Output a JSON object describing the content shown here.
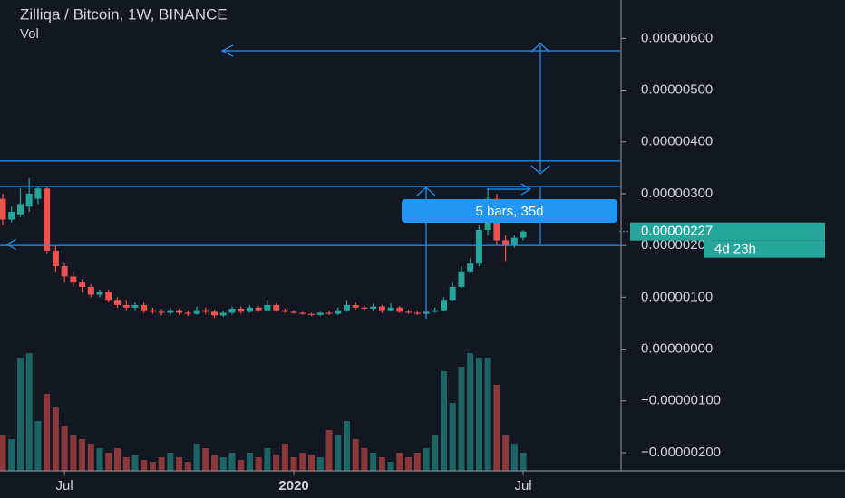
{
  "chart_data": {
    "type": "candlestick",
    "title": "Zilliqa / Bitcoin, 1W, BINANCE",
    "volume_label": "Vol",
    "categories": [
      null,
      null,
      null,
      null,
      null,
      null,
      null,
      "Jul",
      null,
      null,
      null,
      null,
      null,
      null,
      null,
      null,
      null,
      null,
      null,
      null,
      null,
      null,
      null,
      null,
      null,
      null,
      null,
      null,
      null,
      null,
      null,
      null,
      null,
      "2020",
      null,
      null,
      null,
      null,
      null,
      null,
      null,
      null,
      null,
      null,
      null,
      null,
      null,
      null,
      null,
      null,
      null,
      null,
      null,
      null,
      null,
      null,
      null,
      null,
      null,
      "Jul"
    ],
    "open": [
      2.9e-06,
      2.5e-06,
      2.6e-06,
      2.75e-06,
      2.9e-06,
      3.1e-06,
      1.9e-06,
      1.6e-06,
      1.4e-06,
      1.3e-06,
      1.2e-06,
      1.05e-06,
      1.1e-06,
      9.5e-07,
      8.5e-07,
      8e-07,
      8.5e-07,
      7.5e-07,
      7.2e-07,
      7e-07,
      7.5e-07,
      7e-07,
      6.8e-07,
      7.5e-07,
      7.2e-07,
      6.5e-07,
      7e-07,
      7.8e-07,
      7.2e-07,
      8e-07,
      7.5e-07,
      8.5e-07,
      7.5e-07,
      7.2e-07,
      7e-07,
      6.8e-07,
      6.6e-07,
      7e-07,
      6.8e-07,
      7.5e-07,
      8.5e-07,
      8e-07,
      7.8e-07,
      8.2e-07,
      7.5e-07,
      8e-07,
      7.2e-07,
      7e-07,
      6.8e-07,
      7.2e-07,
      7.5e-07,
      9.5e-07,
      1.2e-06,
      1.5e-06,
      1.65e-06,
      2.3e-06,
      2.9e-06,
      2.1e-06,
      2e-06,
      2.15e-06
    ],
    "high": [
      3e-06,
      2.75e-06,
      3.1e-06,
      3.3e-06,
      3.15e-06,
      3.15e-06,
      2e-06,
      1.65e-06,
      1.5e-06,
      1.35e-06,
      1.25e-06,
      1.15e-06,
      1.15e-06,
      1e-06,
      9.5e-07,
      9e-07,
      9e-07,
      8e-07,
      7.8e-07,
      8e-07,
      7.8e-07,
      7.5e-07,
      8.2e-07,
      8e-07,
      7.6e-07,
      7.4e-07,
      8.2e-07,
      8.2e-07,
      8.5e-07,
      8.3e-07,
      9.5e-07,
      8.8e-07,
      7.8e-07,
      7.5e-07,
      7.2e-07,
      7e-07,
      7.2e-07,
      7.4e-07,
      8e-07,
      9.5e-07,
      9e-07,
      8.4e-07,
      8.8e-07,
      8.5e-07,
      8.8e-07,
      8.3e-07,
      7.6e-07,
      7.4e-07,
      7.6e-07,
      8e-07,
      1e-06,
      1.3e-06,
      1.6e-06,
      1.75e-06,
      2.4e-06,
      3.1e-06,
      3e-06,
      2.2e-06,
      2.2e-06,
      2.3e-06
    ],
    "low": [
      2.4e-06,
      2.45e-06,
      2.55e-06,
      2.65e-06,
      2.8e-06,
      1.85e-06,
      1.5e-06,
      1.3e-06,
      1.2e-06,
      1.1e-06,
      1e-06,
      1e-06,
      9e-07,
      8e-07,
      7.5e-07,
      7.5e-07,
      7e-07,
      6.8e-07,
      6.5e-07,
      6.5e-07,
      6.6e-07,
      6.4e-07,
      6.6e-07,
      6.8e-07,
      6e-07,
      6.2e-07,
      6.7e-07,
      6.8e-07,
      7e-07,
      7.2e-07,
      7.3e-07,
      7.2e-07,
      7e-07,
      6.8e-07,
      6.6e-07,
      6.4e-07,
      6.4e-07,
      6.6e-07,
      6.6e-07,
      7.2e-07,
      7.6e-07,
      7.5e-07,
      7.4e-07,
      7e-07,
      7.3e-07,
      7e-07,
      6.8e-07,
      6.6e-07,
      6.6e-07,
      7e-07,
      7.3e-07,
      9.3e-07,
      1.18e-06,
      1.48e-06,
      1.6e-06,
      2.2e-06,
      2e-06,
      1.7e-06,
      1.95e-06,
      2.1e-06
    ],
    "close": [
      2.5e-06,
      2.65e-06,
      2.8e-06,
      3e-06,
      3.1e-06,
      1.9e-06,
      1.6e-06,
      1.4e-06,
      1.3e-06,
      1.2e-06,
      1.05e-06,
      1.1e-06,
      9.5e-07,
      8.5e-07,
      8e-07,
      8.5e-07,
      7.5e-07,
      7.2e-07,
      7e-07,
      7.5e-07,
      7e-07,
      6.8e-07,
      7.5e-07,
      7.2e-07,
      6.5e-07,
      7e-07,
      7.8e-07,
      7.2e-07,
      8e-07,
      7.5e-07,
      8.5e-07,
      7.5e-07,
      7.2e-07,
      7e-07,
      6.8e-07,
      6.6e-07,
      7e-07,
      6.8e-07,
      7.5e-07,
      8.5e-07,
      8e-07,
      7.8e-07,
      8.2e-07,
      7.5e-07,
      8e-07,
      7.2e-07,
      7e-07,
      6.8e-07,
      7.2e-07,
      7.5e-07,
      9.5e-07,
      1.2e-06,
      1.5e-06,
      1.65e-06,
      2.3e-06,
      2.9e-06,
      2.1e-06,
      2e-06,
      2.15e-06,
      2.27e-06
    ],
    "volume": [
      40,
      35,
      125,
      130,
      55,
      85,
      70,
      50,
      40,
      35,
      30,
      25,
      20,
      25,
      15,
      18,
      12,
      10,
      15,
      20,
      15,
      10,
      30,
      25,
      18,
      15,
      20,
      12,
      20,
      15,
      25,
      18,
      30,
      15,
      20,
      18,
      15,
      45,
      40,
      55,
      35,
      25,
      20,
      15,
      10,
      20,
      15,
      20,
      25,
      40,
      110,
      75,
      115,
      130,
      125,
      125,
      95,
      40,
      30,
      20
    ],
    "up_color": "#26a69a",
    "down_color": "#ef5350",
    "ylim": [
      -2.35e-06,
      6.74e-06
    ],
    "yticks": [
      {
        "value": 6e-06,
        "label": "0.00000600"
      },
      {
        "value": 5e-06,
        "label": "0.00000500"
      },
      {
        "value": 4e-06,
        "label": "0.00000400"
      },
      {
        "value": 3e-06,
        "label": "0.00000300"
      },
      {
        "value": 2e-06,
        "label": "0.00000200"
      },
      {
        "value": 1e-06,
        "label": "0.00000100"
      },
      {
        "value": 0,
        "label": "0.00000000"
      },
      {
        "value": -1e-06,
        "label": "−0.00000100"
      },
      {
        "value": -2e-06,
        "label": "−0.00000200"
      }
    ],
    "last_price": {
      "value": 2.27e-06,
      "label": "0.00000227"
    },
    "countdown": "4d 23h",
    "horizontal_lines": [
      3.63e-06,
      3.14e-06,
      2e-06
    ],
    "annotation": "5 bars, 35d"
  }
}
